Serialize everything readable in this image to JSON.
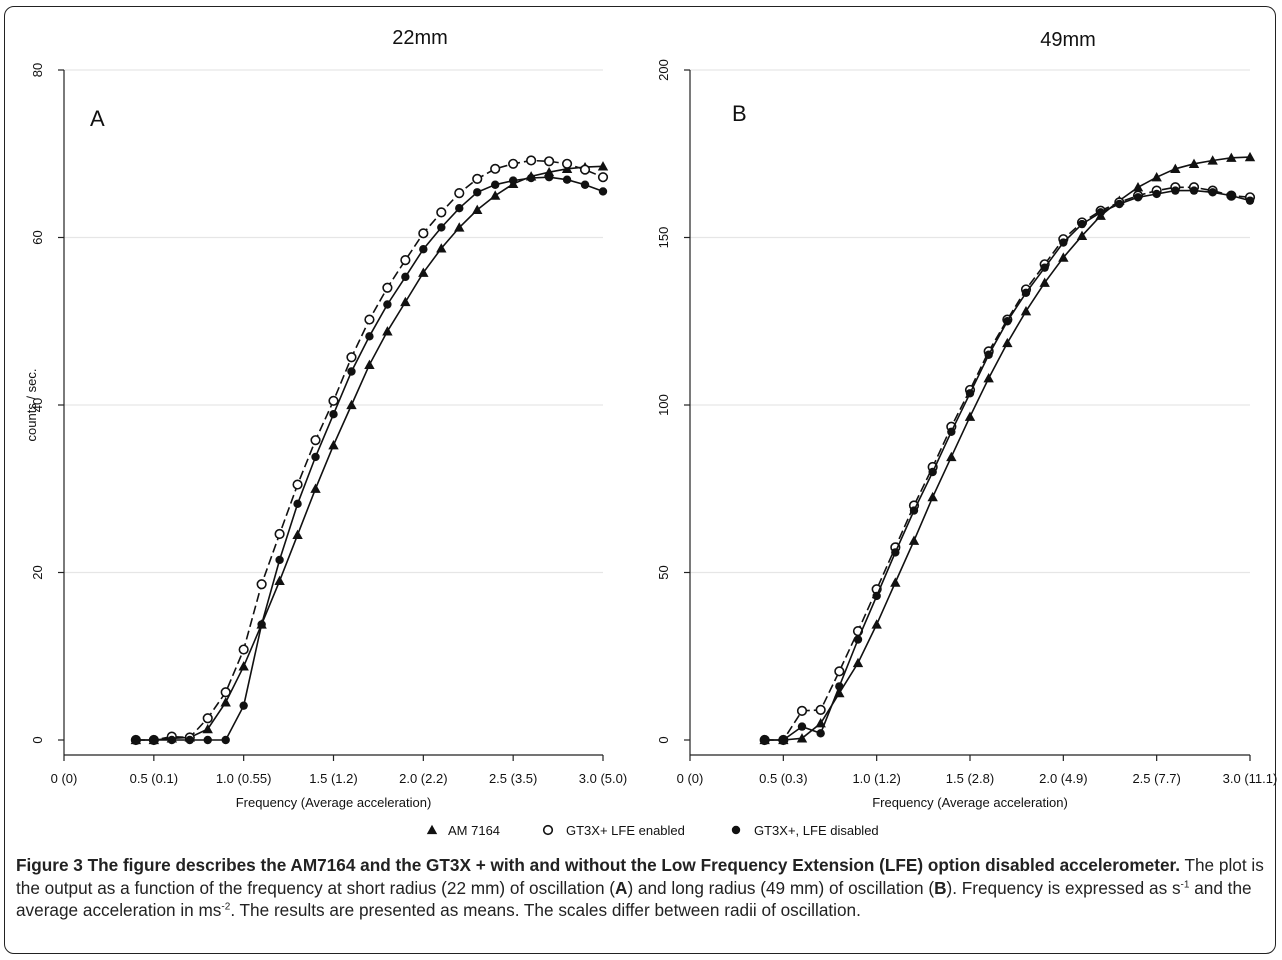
{
  "figure": {
    "legend": [
      {
        "label": "AM 7164",
        "marker": "triangle"
      },
      {
        "label": "GT3X+ LFE enabled",
        "marker": "open-circle"
      },
      {
        "label": "GT3X+, LFE disabled",
        "marker": "filled-circle"
      }
    ],
    "caption": {
      "head": "Figure 3 The figure describes the AM7164 and the GT3X + with and without the Low Frequency Extension (LFE) option disabled accelerometer.",
      "t1": " The plot is the output as a function of the frequency at short radius (22 mm) of oscillation (",
      "a": "A",
      "t2": ") and long radius (49 mm) of oscillation (",
      "b": "B",
      "t3": "). Frequency is expressed as s",
      "sup1": "-1",
      "t4": " and the average acceleration in ms",
      "sup2": "-2",
      "t5": ". The results are presented as means. The scales differ between radii of oscillation."
    },
    "colors": {
      "line": "#111111",
      "grid": "#e6e6e6",
      "axis": "#222222"
    }
  },
  "chart_data": [
    {
      "type": "line",
      "panel": "A",
      "title": "22mm",
      "xlabel": "Frequency (Average acceleration)",
      "ylabel": "counts / sec.",
      "xlim": [
        0,
        3.0
      ],
      "ylim": [
        0,
        80
      ],
      "x_ticks": [
        {
          "value": 0,
          "label": "0 (0)"
        },
        {
          "value": 0.5,
          "label": "0.5 (0.1)"
        },
        {
          "value": 1.0,
          "label": "1.0 (0.55)"
        },
        {
          "value": 1.5,
          "label": "1.5 (1.2)"
        },
        {
          "value": 2.0,
          "label": "2.0 (2.2)"
        },
        {
          "value": 2.5,
          "label": "2.5 (3.5)"
        },
        {
          "value": 3.0,
          "label": "3.0 (5.0)"
        }
      ],
      "y_ticks": [
        0,
        20,
        40,
        60,
        80
      ],
      "grid": true,
      "series": [
        {
          "name": "AM 7164",
          "marker": "triangle",
          "dash": false,
          "x": [
            0.4,
            0.5,
            0.6,
            0.7,
            0.8,
            0.9,
            1.0,
            1.1,
            1.2,
            1.3,
            1.4,
            1.5,
            1.6,
            1.7,
            1.8,
            1.9,
            2.0,
            2.1,
            2.2,
            2.3,
            2.4,
            2.5,
            2.6,
            2.7,
            2.8,
            2.9,
            3.0
          ],
          "y": [
            0,
            0,
            0.2,
            0.3,
            1.3,
            4.5,
            8.8,
            13.8,
            19,
            24.5,
            30,
            35.2,
            40,
            44.8,
            48.8,
            52.3,
            55.8,
            58.7,
            61.2,
            63.3,
            65,
            66.4,
            67.3,
            67.8,
            68.2,
            68.4,
            68.5
          ]
        },
        {
          "name": "GT3X+ LFE enabled",
          "marker": "open-circle",
          "dash": true,
          "x": [
            0.4,
            0.5,
            0.6,
            0.7,
            0.8,
            0.9,
            1.0,
            1.1,
            1.2,
            1.3,
            1.4,
            1.5,
            1.6,
            1.7,
            1.8,
            1.9,
            2.0,
            2.1,
            2.2,
            2.3,
            2.4,
            2.5,
            2.6,
            2.7,
            2.8,
            2.9,
            3.0
          ],
          "y": [
            0,
            0,
            0.4,
            0.3,
            2.6,
            5.7,
            10.8,
            18.6,
            24.6,
            30.5,
            35.8,
            40.5,
            45.7,
            50.2,
            54,
            57.3,
            60.5,
            63,
            65.3,
            67,
            68.2,
            68.8,
            69.2,
            69.1,
            68.8,
            68.1,
            67.2
          ]
        },
        {
          "name": "GT3X+, LFE disabled",
          "marker": "filled-circle",
          "dash": false,
          "x": [
            0.4,
            0.5,
            0.6,
            0.7,
            0.8,
            0.9,
            1.0,
            1.1,
            1.2,
            1.3,
            1.4,
            1.5,
            1.6,
            1.7,
            1.8,
            1.9,
            2.0,
            2.1,
            2.2,
            2.3,
            2.4,
            2.5,
            2.6,
            2.7,
            2.8,
            2.9,
            3.0
          ],
          "y": [
            0,
            0,
            0,
            0,
            0,
            0,
            4.1,
            13.8,
            21.5,
            28.2,
            33.8,
            38.9,
            44,
            48.2,
            52,
            55.3,
            58.6,
            61.2,
            63.5,
            65.4,
            66.3,
            66.8,
            67.1,
            67.2,
            66.9,
            66.3,
            65.5
          ]
        }
      ]
    },
    {
      "type": "line",
      "panel": "B",
      "title": "49mm",
      "xlabel": "Frequency (Average acceleration)",
      "ylabel": "",
      "xlim": [
        0,
        3.0
      ],
      "ylim": [
        0,
        200
      ],
      "x_ticks": [
        {
          "value": 0,
          "label": "0 (0)"
        },
        {
          "value": 0.5,
          "label": "0.5 (0.3)"
        },
        {
          "value": 1.0,
          "label": "1.0 (1.2)"
        },
        {
          "value": 1.5,
          "label": "1.5 (2.8)"
        },
        {
          "value": 2.0,
          "label": "2.0 (4.9)"
        },
        {
          "value": 2.5,
          "label": "2.5 (7.7)"
        },
        {
          "value": 3.0,
          "label": "3.0 (11.1)"
        }
      ],
      "y_ticks": [
        0,
        50,
        100,
        150,
        200
      ],
      "grid": true,
      "series": [
        {
          "name": "AM 7164",
          "marker": "triangle",
          "dash": false,
          "x": [
            0.4,
            0.5,
            0.6,
            0.7,
            0.8,
            0.9,
            1.0,
            1.1,
            1.2,
            1.3,
            1.4,
            1.5,
            1.6,
            1.7,
            1.8,
            1.9,
            2.0,
            2.1,
            2.2,
            2.3,
            2.4,
            2.5,
            2.6,
            2.7,
            2.8,
            2.9,
            3.0
          ],
          "y": [
            0,
            0,
            0.5,
            5,
            14,
            23,
            34.5,
            47,
            59.5,
            72.5,
            84.5,
            96.5,
            108,
            118.5,
            128,
            136.5,
            144,
            150.5,
            156.5,
            161,
            165,
            168,
            170.5,
            172,
            173,
            173.8,
            174
          ]
        },
        {
          "name": "GT3X+ LFE enabled",
          "marker": "open-circle",
          "dash": true,
          "x": [
            0.4,
            0.5,
            0.6,
            0.7,
            0.8,
            0.9,
            1.0,
            1.1,
            1.2,
            1.3,
            1.4,
            1.5,
            1.6,
            1.7,
            1.8,
            1.9,
            2.0,
            2.1,
            2.2,
            2.3,
            2.4,
            2.5,
            2.6,
            2.7,
            2.8,
            2.9,
            3.0
          ],
          "y": [
            0,
            0,
            8.7,
            9,
            20.5,
            32.5,
            45,
            57.5,
            70,
            81.5,
            93.5,
            104.5,
            116,
            125.5,
            134.5,
            142,
            149.5,
            154.5,
            158,
            160.5,
            162.5,
            164,
            165,
            165,
            164,
            162.5,
            162
          ]
        },
        {
          "name": "GT3X+, LFE disabled",
          "marker": "filled-circle",
          "dash": false,
          "x": [
            0.4,
            0.5,
            0.6,
            0.7,
            0.8,
            0.9,
            1.0,
            1.1,
            1.2,
            1.3,
            1.4,
            1.5,
            1.6,
            1.7,
            1.8,
            1.9,
            2.0,
            2.1,
            2.2,
            2.3,
            2.4,
            2.5,
            2.6,
            2.7,
            2.8,
            2.9,
            3.0
          ],
          "y": [
            0,
            0,
            4,
            2,
            16,
            30,
            43,
            56,
            68.5,
            80,
            92,
            103.5,
            115,
            125,
            133.5,
            141,
            148.5,
            154,
            157.5,
            160,
            162,
            163,
            164,
            164,
            163.5,
            162.5,
            161
          ]
        }
      ]
    }
  ]
}
